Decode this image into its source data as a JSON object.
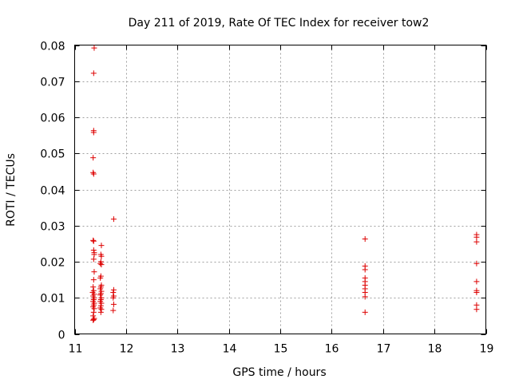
{
  "chart_data": {
    "type": "scatter",
    "title": "Day 211 of 2019, Rate Of TEC Index for receiver tow2",
    "xlabel": "GPS time / hours",
    "ylabel": "ROTI / TECUs",
    "xlim": [
      11,
      19
    ],
    "ylim": [
      0,
      0.08
    ],
    "xticks": [
      11,
      12,
      13,
      14,
      15,
      16,
      17,
      18,
      19
    ],
    "yticks": [
      0,
      0.01,
      0.02,
      0.03,
      0.04,
      0.05,
      0.06,
      0.07,
      0.08
    ],
    "xtick_labels": [
      "11",
      "12",
      "13",
      "14",
      "15",
      "16",
      "17",
      "18",
      "19"
    ],
    "ytick_labels": [
      "0",
      "0.01",
      "0.02",
      "0.03",
      "0.04",
      "0.05",
      "0.06",
      "0.07",
      "0.08"
    ],
    "grid": true,
    "marker": "+",
    "color": "#dd0000",
    "series": [
      {
        "name": "tow2",
        "points": [
          [
            11.38,
            0.0792
          ],
          [
            11.37,
            0.0722
          ],
          [
            11.37,
            0.0563
          ],
          [
            11.37,
            0.0558
          ],
          [
            11.36,
            0.0488
          ],
          [
            11.36,
            0.0447
          ],
          [
            11.37,
            0.0443
          ],
          [
            11.36,
            0.0259
          ],
          [
            11.37,
            0.0257
          ],
          [
            11.37,
            0.0232
          ],
          [
            11.38,
            0.0225
          ],
          [
            11.38,
            0.022
          ],
          [
            11.37,
            0.0207
          ],
          [
            11.38,
            0.0172
          ],
          [
            11.37,
            0.015
          ],
          [
            11.36,
            0.013
          ],
          [
            11.37,
            0.012
          ],
          [
            11.35,
            0.0115
          ],
          [
            11.38,
            0.011
          ],
          [
            11.36,
            0.0105
          ],
          [
            11.38,
            0.01
          ],
          [
            11.37,
            0.0095
          ],
          [
            11.36,
            0.009
          ],
          [
            11.38,
            0.0085
          ],
          [
            11.37,
            0.008
          ],
          [
            11.36,
            0.0075
          ],
          [
            11.38,
            0.007
          ],
          [
            11.37,
            0.006
          ],
          [
            11.36,
            0.005
          ],
          [
            11.38,
            0.0043
          ],
          [
            11.37,
            0.004
          ],
          [
            11.36,
            0.0038
          ],
          [
            11.52,
            0.0245
          ],
          [
            11.51,
            0.022
          ],
          [
            11.52,
            0.0215
          ],
          [
            11.51,
            0.02
          ],
          [
            11.5,
            0.0195
          ],
          [
            11.52,
            0.0192
          ],
          [
            11.51,
            0.016
          ],
          [
            11.5,
            0.0155
          ],
          [
            11.52,
            0.0135
          ],
          [
            11.51,
            0.013
          ],
          [
            11.5,
            0.0125
          ],
          [
            11.52,
            0.0118
          ],
          [
            11.51,
            0.0112
          ],
          [
            11.5,
            0.0108
          ],
          [
            11.52,
            0.01
          ],
          [
            11.51,
            0.0095
          ],
          [
            11.5,
            0.009
          ],
          [
            11.52,
            0.0085
          ],
          [
            11.51,
            0.0078
          ],
          [
            11.5,
            0.0072
          ],
          [
            11.52,
            0.0068
          ],
          [
            11.51,
            0.006
          ],
          [
            11.76,
            0.0318
          ],
          [
            11.76,
            0.0122
          ],
          [
            11.75,
            0.0115
          ],
          [
            11.76,
            0.0105
          ],
          [
            11.75,
            0.01
          ],
          [
            11.76,
            0.0082
          ],
          [
            11.75,
            0.0065
          ],
          [
            16.65,
            0.0263
          ],
          [
            16.65,
            0.0188
          ],
          [
            16.65,
            0.0178
          ],
          [
            16.65,
            0.0155
          ],
          [
            16.65,
            0.0145
          ],
          [
            16.65,
            0.0135
          ],
          [
            16.65,
            0.0125
          ],
          [
            16.65,
            0.0115
          ],
          [
            16.65,
            0.0103
          ],
          [
            16.65,
            0.006
          ],
          [
            18.82,
            0.0275
          ],
          [
            18.82,
            0.0268
          ],
          [
            18.82,
            0.0255
          ],
          [
            18.82,
            0.0195
          ],
          [
            18.82,
            0.0145
          ],
          [
            18.82,
            0.012
          ],
          [
            18.82,
            0.0115
          ],
          [
            18.82,
            0.008
          ],
          [
            18.82,
            0.0068
          ]
        ]
      }
    ]
  }
}
